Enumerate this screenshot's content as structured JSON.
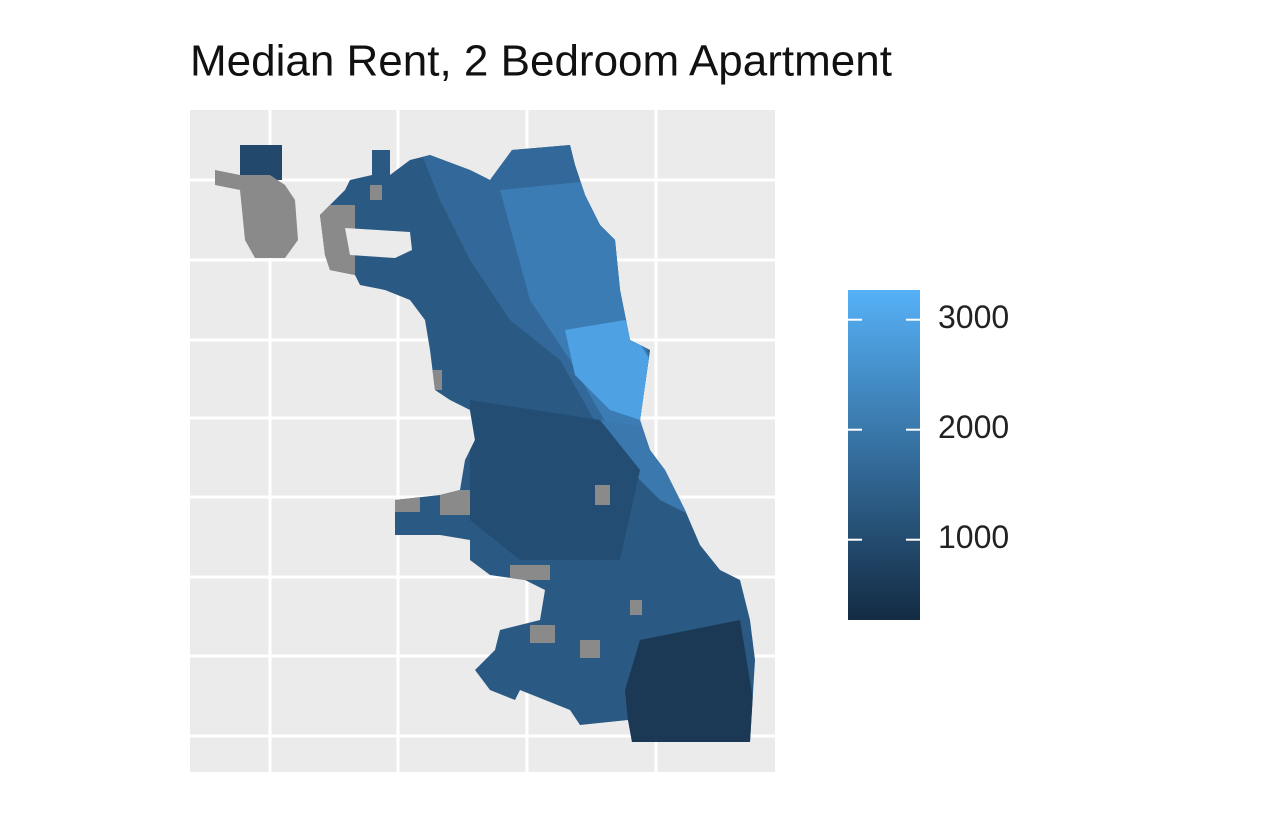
{
  "chart_data": {
    "type": "choropleth",
    "title": "Median Rent, 2 Bedroom Apartment",
    "legend": {
      "limits": [
        270,
        3270
      ],
      "ticks": [
        1000,
        2000,
        3000
      ],
      "low_color": "#132B43",
      "high_color": "#56B1F7"
    }
  }
}
